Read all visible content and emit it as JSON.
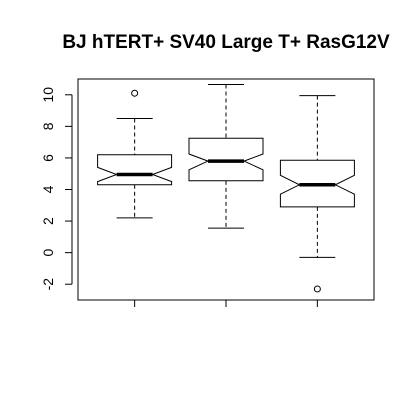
{
  "chart_data": {
    "type": "boxplot",
    "title": "BJ hTERT+ SV40 Large T+ RasG12V",
    "xlabel": "",
    "ylabel": "",
    "ylim": [
      -3,
      11
    ],
    "y_ticks": [
      -2,
      0,
      2,
      4,
      6,
      8,
      10
    ],
    "x_tick_count": 3,
    "grid": false,
    "notched": true,
    "colors": {
      "stroke": "#000000",
      "background": "#ffffff"
    },
    "boxes": [
      {
        "min": 2.2,
        "q1": 4.3,
        "median": 4.95,
        "q3": 6.2,
        "max": 8.5,
        "notch_low": 4.5,
        "notch_high": 5.4,
        "outliers": [
          10.1
        ]
      },
      {
        "min": 1.55,
        "q1": 4.55,
        "median": 5.8,
        "q3": 7.25,
        "max": 10.65,
        "notch_low": 5.25,
        "notch_high": 6.25,
        "outliers": []
      },
      {
        "min": -0.3,
        "q1": 2.9,
        "median": 4.3,
        "q3": 5.85,
        "max": 9.95,
        "notch_low": 3.7,
        "notch_high": 4.9,
        "outliers": [
          -2.3
        ]
      }
    ]
  }
}
